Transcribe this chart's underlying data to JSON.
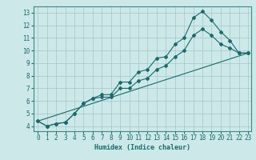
{
  "xlabel": "Humidex (Indice chaleur)",
  "bg_color": "#cce8e8",
  "grid_color": "#aacccc",
  "line_color": "#1a6b6b",
  "spine_color": "#3a8a8a",
  "xlim": [
    -0.5,
    23.3
  ],
  "ylim": [
    3.6,
    13.5
  ],
  "xticks": [
    0,
    1,
    2,
    3,
    4,
    5,
    6,
    7,
    8,
    9,
    10,
    11,
    12,
    13,
    14,
    15,
    16,
    17,
    18,
    19,
    20,
    21,
    22,
    23
  ],
  "yticks": [
    4,
    5,
    6,
    7,
    8,
    9,
    10,
    11,
    12,
    13
  ],
  "series1_x": [
    0,
    1,
    2,
    3,
    4,
    5,
    6,
    7,
    8,
    9,
    10,
    11,
    12,
    13,
    14,
    15,
    16,
    17,
    18,
    19,
    20,
    21,
    22,
    23
  ],
  "series1_y": [
    4.4,
    4.0,
    4.2,
    4.3,
    5.0,
    5.8,
    6.2,
    6.5,
    6.5,
    7.5,
    7.5,
    8.3,
    8.5,
    9.4,
    9.5,
    10.5,
    11.0,
    12.6,
    13.1,
    12.4,
    11.5,
    10.8,
    9.8,
    9.8
  ],
  "series2_x": [
    0,
    1,
    2,
    3,
    4,
    5,
    6,
    7,
    8,
    9,
    10,
    11,
    12,
    13,
    14,
    15,
    16,
    17,
    18,
    19,
    20,
    21,
    22,
    23
  ],
  "series2_y": [
    4.4,
    4.0,
    4.2,
    4.3,
    5.0,
    5.8,
    6.2,
    6.3,
    6.3,
    7.0,
    7.0,
    7.6,
    7.8,
    8.5,
    8.8,
    9.5,
    10.0,
    11.2,
    11.7,
    11.2,
    10.5,
    10.2,
    9.8,
    9.8
  ],
  "series3_x": [
    0,
    23
  ],
  "series3_y": [
    4.4,
    9.8
  ],
  "markersize": 2.0,
  "linewidth": 0.8,
  "tick_fontsize": 5.5,
  "xlabel_fontsize": 6.0
}
